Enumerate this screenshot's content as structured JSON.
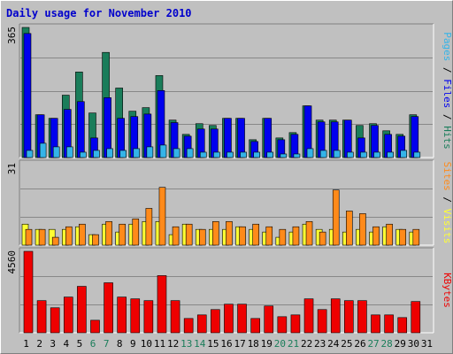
{
  "title": "Daily usage for November 2010",
  "colors": {
    "hits": "#1a7d5a",
    "files": "#0000ee",
    "pages": "#34b4e8",
    "visits": "#ffff33",
    "sites": "#ff8a1a",
    "kbytes": "#ee0000",
    "weekend_label": "#1a7d5a",
    "weekday_label": "#000000",
    "title": "#0000cc"
  },
  "legend": {
    "top": [
      {
        "text": "Pages",
        "color": "#34b4e8"
      },
      {
        "text": " / ",
        "color": "#000000"
      },
      {
        "text": "Files",
        "color": "#0000ee"
      },
      {
        "text": " / ",
        "color": "#000000"
      },
      {
        "text": "Hits",
        "color": "#1a7d5a"
      }
    ],
    "middle": [
      {
        "text": "Sites",
        "color": "#ff8a1a"
      },
      {
        "text": " / ",
        "color": "#000000"
      },
      {
        "text": "Visits",
        "color": "#ffff33"
      }
    ],
    "bottom": [
      {
        "text": "KBytes",
        "color": "#ee0000"
      }
    ]
  },
  "chart_data": {
    "type": "bar",
    "title": "Daily usage for November 2010",
    "categories": [
      "1",
      "2",
      "3",
      "4",
      "5",
      "6",
      "7",
      "8",
      "9",
      "10",
      "11",
      "12",
      "13",
      "14",
      "15",
      "16",
      "17",
      "18",
      "19",
      "20",
      "21",
      "22",
      "23",
      "24",
      "25",
      "26",
      "27",
      "28",
      "29",
      "30",
      "31"
    ],
    "weekend_days": [
      "6",
      "7",
      "13",
      "14",
      "20",
      "21",
      "27",
      "28"
    ],
    "panels": [
      {
        "name": "top",
        "ymax_label": "365",
        "ylim": [
          0,
          365
        ],
        "series": [
          {
            "name": "Hits",
            "values": [
              365,
              120,
              110,
              175,
              240,
              125,
              295,
              195,
              130,
              140,
              230,
              105,
              65,
              95,
              90,
              110,
              110,
              50,
              110,
              55,
              70,
              145,
              105,
              105,
              105,
              90,
              95,
              75,
              65,
              120,
              0
            ]
          },
          {
            "name": "Files",
            "values": [
              348,
              120,
              110,
              135,
              157,
              55,
              168,
              110,
              115,
              122,
              188,
              98,
              60,
              80,
              80,
              110,
              110,
              45,
              110,
              50,
              65,
              145,
              100,
              100,
              105,
              55,
              90,
              65,
              60,
              115,
              0
            ]
          },
          {
            "name": "Pages",
            "values": [
              20,
              40,
              30,
              30,
              15,
              20,
              25,
              20,
              25,
              30,
              35,
              25,
              25,
              15,
              15,
              15,
              15,
              15,
              15,
              10,
              10,
              25,
              20,
              20,
              15,
              15,
              15,
              15,
              20,
              15,
              0
            ]
          }
        ]
      },
      {
        "name": "middle",
        "ymax_label": "31",
        "ylim": [
          0,
          31
        ],
        "series": [
          {
            "name": "Visits",
            "values": [
              8,
              6,
              6,
              6,
              7,
              4,
              8,
              5,
              8,
              9,
              9,
              4,
              8,
              6,
              6,
              6,
              7,
              6,
              5,
              3,
              5,
              8,
              6,
              6,
              5,
              6,
              5,
              7,
              6,
              5,
              0
            ]
          },
          {
            "name": "Sites",
            "values": [
              6,
              6,
              3,
              7,
              8,
              4,
              9,
              8,
              10,
              14,
              22,
              7,
              8,
              6,
              9,
              9,
              7,
              8,
              7,
              6,
              7,
              9,
              5,
              21,
              13,
              12,
              7,
              8,
              6,
              6,
              0
            ]
          }
        ]
      },
      {
        "name": "bottom",
        "ymax_label": "4560",
        "ylim": [
          0,
          4560
        ],
        "series": [
          {
            "name": "KBytes",
            "values": [
              4560,
              1800,
              1400,
              2000,
              2600,
              700,
              2800,
              2000,
              1900,
              1800,
              3200,
              1800,
              800,
              1000,
              1300,
              1600,
              1600,
              800,
              1500,
              900,
              1000,
              1900,
              1300,
              1900,
              1800,
              1800,
              1000,
              1000,
              850,
              1750,
              0
            ]
          }
        ]
      }
    ]
  }
}
